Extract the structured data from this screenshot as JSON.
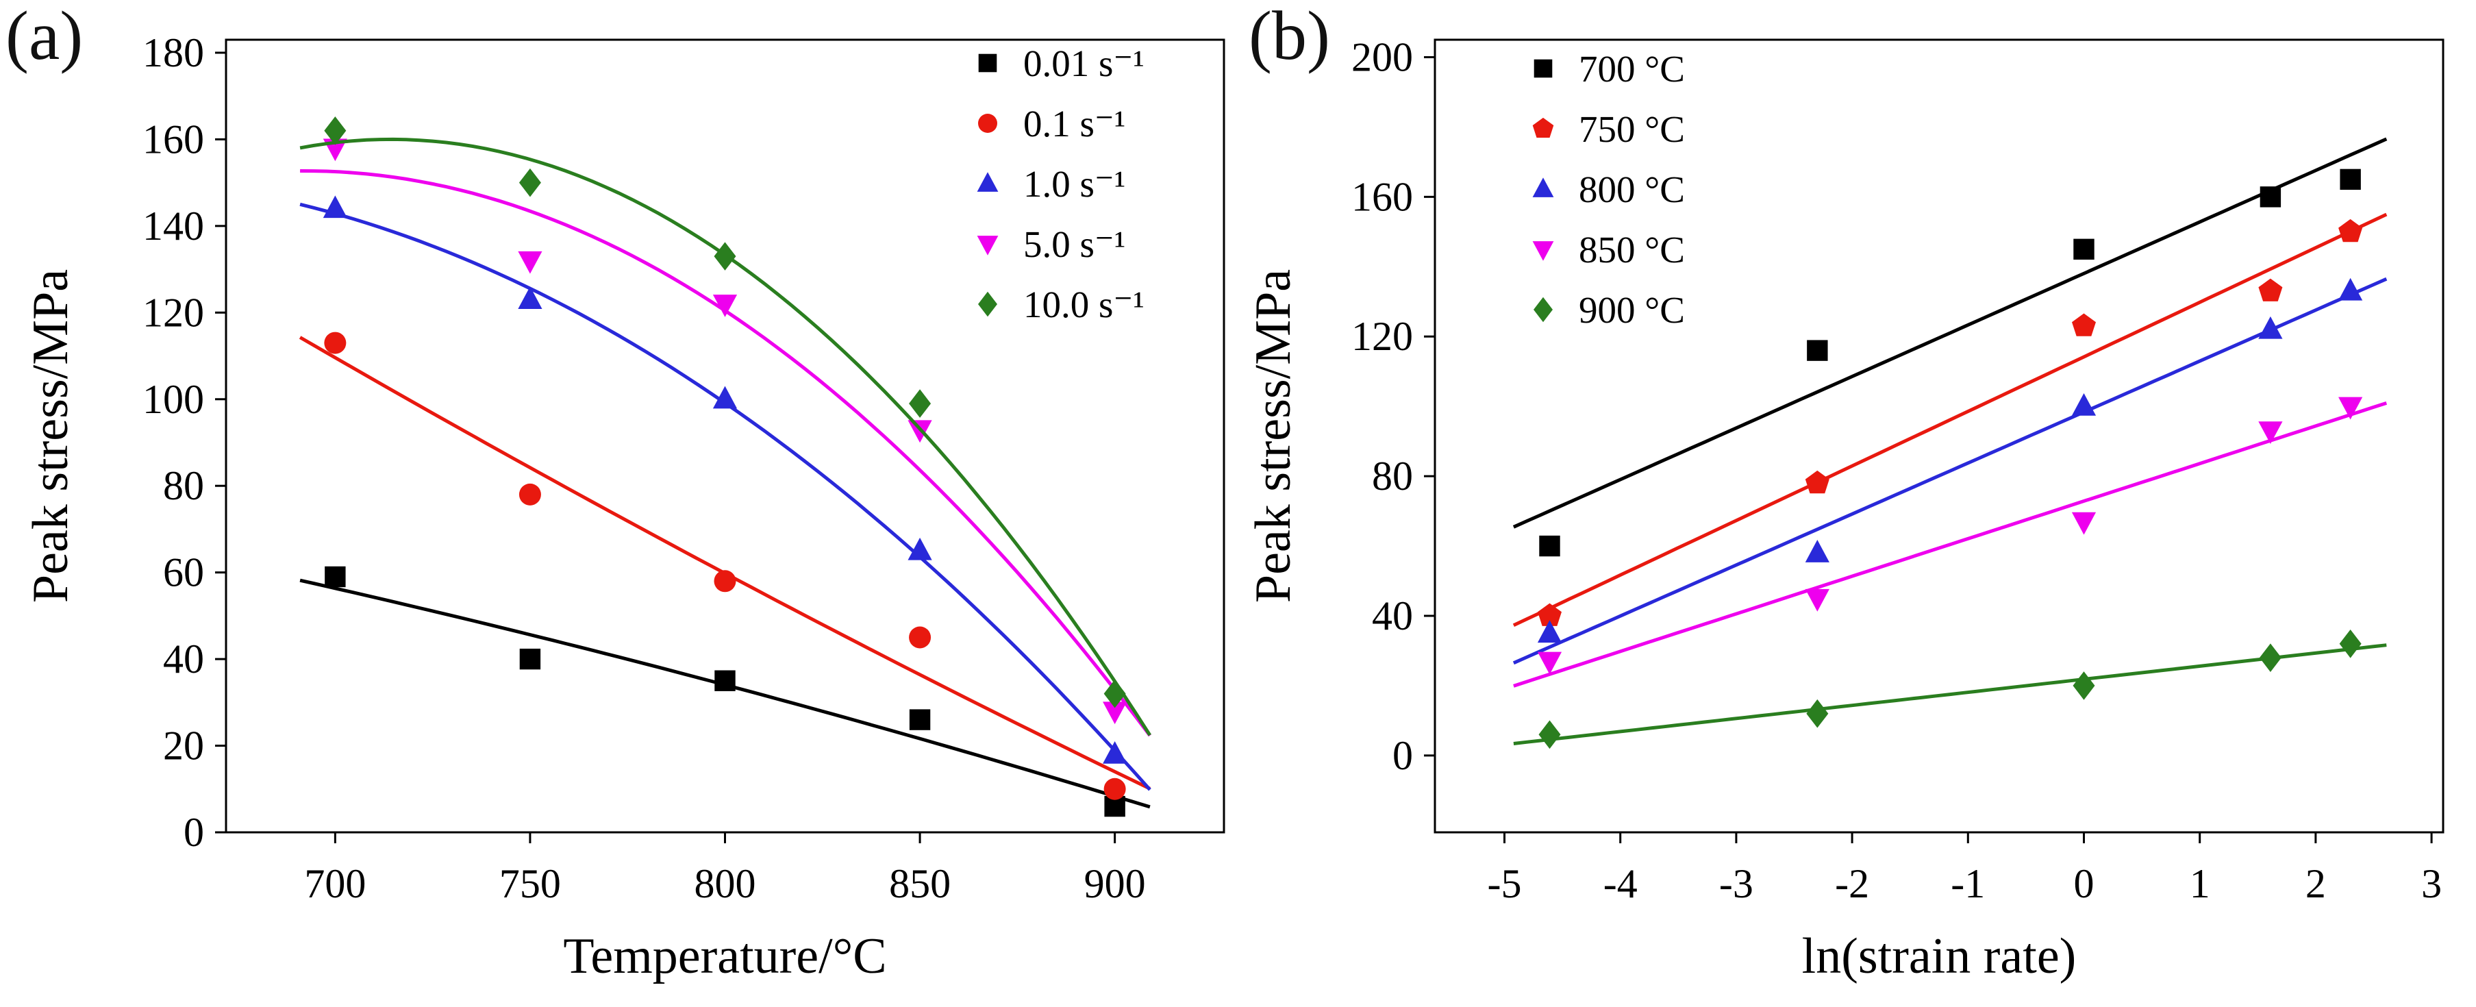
{
  "figure": {
    "background": "#ffffff",
    "panel_labels": [
      "(a)",
      "(b)"
    ]
  },
  "chart_data": [
    {
      "type": "scatter",
      "panel": "a",
      "title": "",
      "xlabel": "Temperature/°C",
      "ylabel": "Peak stress/MPa",
      "xlim": [
        672,
        928
      ],
      "ylim": [
        0,
        183
      ],
      "xticks": [
        700,
        750,
        800,
        850,
        900
      ],
      "yticks": [
        0,
        20,
        40,
        60,
        80,
        100,
        120,
        140,
        160,
        180
      ],
      "grid": false,
      "legend_position": "top-right",
      "fit": "quadratic",
      "x": [
        700,
        750,
        800,
        850,
        900
      ],
      "series": [
        {
          "name": "0.01 s⁻¹",
          "marker": "square",
          "color": "#000000",
          "values": [
            59,
            40,
            35,
            26,
            6
          ]
        },
        {
          "name": "0.1 s⁻¹",
          "marker": "circle",
          "color": "#e8190f",
          "values": [
            113,
            78,
            58,
            45,
            10
          ]
        },
        {
          "name": "1.0 s⁻¹",
          "marker": "triangle-up",
          "color": "#2929d9",
          "values": [
            144,
            123,
            100,
            65,
            18
          ]
        },
        {
          "name": "5.0 s⁻¹",
          "marker": "triangle-down",
          "color": "#ee00ee",
          "values": [
            158,
            132,
            122,
            93,
            28
          ]
        },
        {
          "name": "10.0 s⁻¹",
          "marker": "diamond",
          "color": "#2a7e1f",
          "values": [
            162,
            150,
            133,
            99,
            32
          ]
        }
      ]
    },
    {
      "type": "scatter",
      "panel": "b",
      "title": "",
      "xlabel": "ln(strain rate)",
      "ylabel": "Peak stress/MPa",
      "xlim": [
        -5.6,
        3.1
      ],
      "ylim": [
        -22,
        205
      ],
      "xticks": [
        -5,
        -4,
        -3,
        -2,
        -1,
        0,
        1,
        2,
        3
      ],
      "yticks": [
        0,
        40,
        80,
        120,
        160,
        200
      ],
      "grid": false,
      "legend_position": "top-left",
      "fit": "linear",
      "x": [
        -4.61,
        -2.3,
        0,
        1.61,
        2.3
      ],
      "series": [
        {
          "name": "700 °C",
          "marker": "square",
          "color": "#000000",
          "values": [
            60,
            116,
            145,
            160,
            165
          ]
        },
        {
          "name": "750 °C",
          "marker": "pentagon",
          "color": "#e8190f",
          "values": [
            40,
            78,
            123,
            133,
            150
          ]
        },
        {
          "name": "800 °C",
          "marker": "triangle-up",
          "color": "#2929d9",
          "values": [
            35,
            58,
            100,
            122,
            133
          ]
        },
        {
          "name": "850 °C",
          "marker": "triangle-down",
          "color": "#ee00ee",
          "values": [
            27,
            45,
            67,
            93,
            100
          ]
        },
        {
          "name": "900 °C",
          "marker": "diamond",
          "color": "#2a7e1f",
          "values": [
            6,
            12,
            20,
            28,
            32
          ]
        }
      ]
    }
  ]
}
